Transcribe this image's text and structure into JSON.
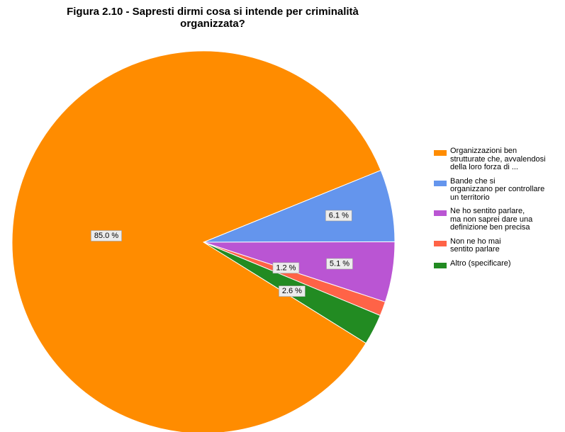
{
  "chart_data": {
    "type": "pie",
    "title_lines": [
      "Figura 2.10 - Sapresti dirmi cosa si intende per criminalità",
      "organizzata?"
    ],
    "slices": [
      {
        "label": "Organizzazioni ben\nstrutturate che,  avvalendosi\ndella loro forza di ...",
        "value": 85.0,
        "value_label": "85.0 %",
        "color": "#ff8c00"
      },
      {
        "label": "Bande che si\norganizzano per controllare\nun territorio",
        "value": 6.1,
        "value_label": "6.1 %",
        "color": "#6495ed"
      },
      {
        "label": "Ne ho sentito parlare,\nma non saprei dare una\ndefinizione ben precisa",
        "value": 5.1,
        "value_label": "5.1 %",
        "color": "#ba55d3"
      },
      {
        "label": "Non ne ho mai\nsentito parlare",
        "value": 1.2,
        "value_label": "1.2 %",
        "color": "#ff6347"
      },
      {
        "label": "Altro (specificare)",
        "value": 2.6,
        "value_label": "2.6 %",
        "color": "#228b22"
      }
    ],
    "legend_position": "right"
  }
}
